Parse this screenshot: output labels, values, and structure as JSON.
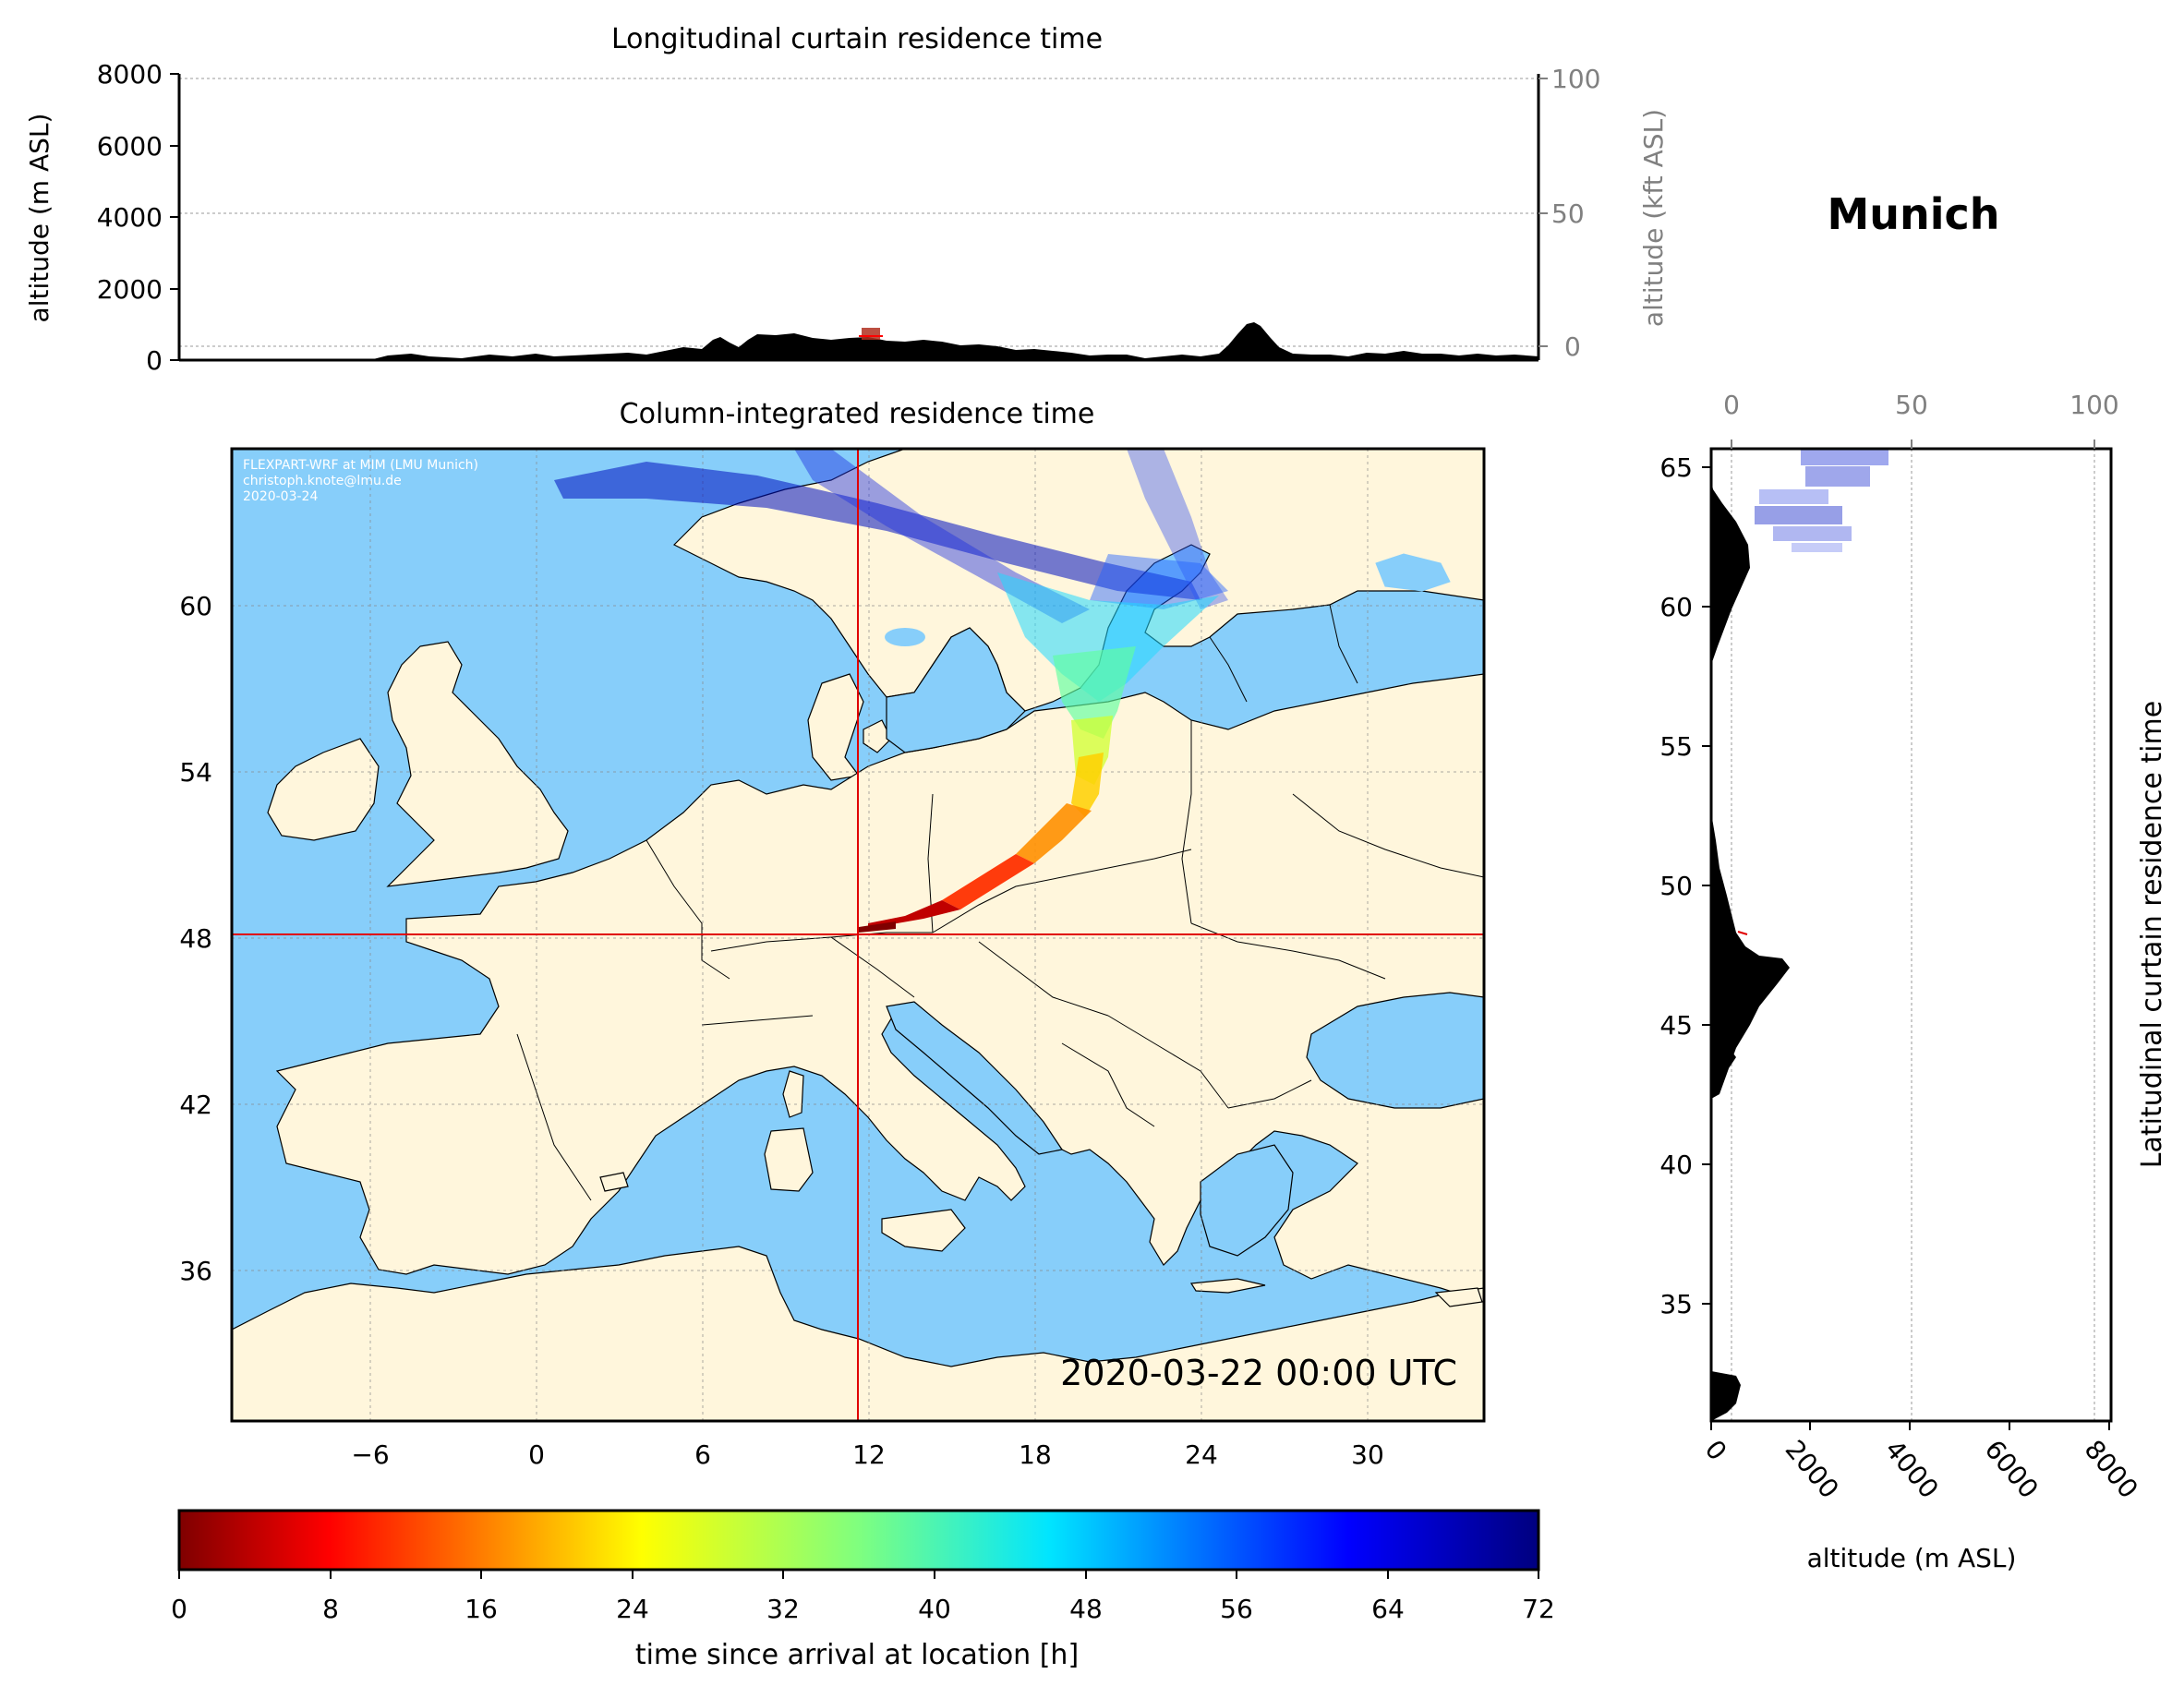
{
  "top_panel": {
    "title": "Longitudinal curtain residence time",
    "ylabel": "altitude (m ASL)",
    "ylabel_right": "altitude (kft ASL)",
    "yticks": [
      "0",
      "2000",
      "4000",
      "6000",
      "8000"
    ],
    "yticks_right": [
      "0",
      "50",
      "100"
    ]
  },
  "map_panel": {
    "title": "Column-integrated residence time",
    "credit_lines": [
      "FLEXPART-WRF at MIM (LMU Munich)",
      "christoph.knote@lmu.de",
      "2020-03-24"
    ],
    "timestamp": "2020-03-22 00:00 UTC",
    "xticks": [
      "−6",
      "0",
      "6",
      "12",
      "18",
      "24",
      "30"
    ],
    "yticks": [
      "60",
      "54",
      "48",
      "42",
      "36"
    ],
    "ocean_color": "#87cefa",
    "land_color": "#fff6dc",
    "crosshair_color": "#e00000"
  },
  "location": {
    "name": "Munich",
    "lon": 11.6,
    "lat": 48.1
  },
  "side_panel": {
    "ylabel_right": "Latitudinal curtain residence time",
    "xlabel": "altitude (m ASL)",
    "xticks": [
      "0",
      "2000",
      "4000",
      "6000",
      "8000"
    ],
    "xticks_top": [
      "0",
      "50",
      "100"
    ],
    "yticks": [
      "35",
      "40",
      "45",
      "50",
      "55",
      "60",
      "65"
    ]
  },
  "colorbar": {
    "label": "time since arrival at location [h]",
    "ticks": [
      "0",
      "8",
      "16",
      "24",
      "32",
      "40",
      "48",
      "56",
      "64",
      "72"
    ],
    "colormap": "jet_r",
    "range": [
      0,
      72
    ]
  }
}
